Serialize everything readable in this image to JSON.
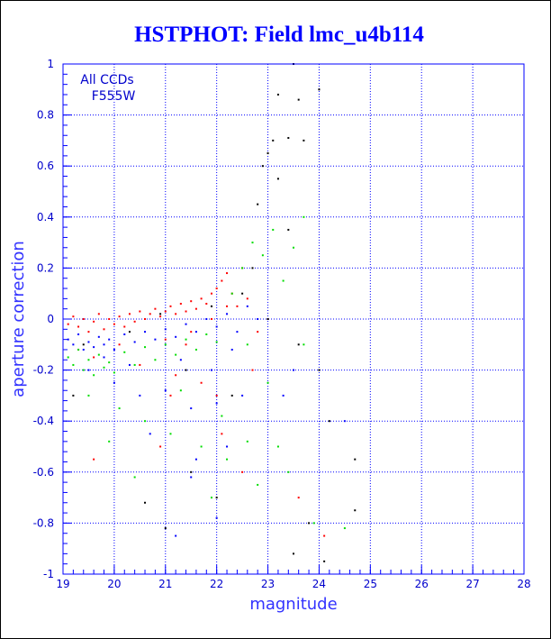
{
  "chart_data": {
    "type": "scatter",
    "title": "HSTPHOT: Field lmc_u4b114",
    "xlabel": "magnitude",
    "ylabel": "aperture correction",
    "xlim": [
      19,
      28
    ],
    "ylim": [
      -1,
      1
    ],
    "xticks": [
      "19",
      "20",
      "21",
      "22",
      "23",
      "24",
      "25",
      "26",
      "27",
      "28"
    ],
    "yticks": [
      "1",
      "0.8",
      "0.6",
      "0.4",
      "0.2",
      "0",
      "-0.2",
      "-0.4",
      "-0.6",
      "-0.8",
      "-1"
    ],
    "grid": true,
    "annotations": [
      "All CCDs",
      "F555W"
    ],
    "colors": {
      "axes": "#0000ff",
      "grid": "#0000ff",
      "title": "#0000ff"
    },
    "series": [
      {
        "color": "#ff0000",
        "points": [
          [
            19.1,
            -0.02
          ],
          [
            19.2,
            0.01
          ],
          [
            19.3,
            -0.03
          ],
          [
            19.4,
            0.0
          ],
          [
            19.5,
            -0.05
          ],
          [
            19.6,
            -0.01
          ],
          [
            19.7,
            0.02
          ],
          [
            19.8,
            -0.04
          ],
          [
            19.9,
            0.0
          ],
          [
            20.0,
            -0.02
          ],
          [
            20.1,
            0.01
          ],
          [
            20.2,
            -0.03
          ],
          [
            20.3,
            0.02
          ],
          [
            20.4,
            -0.01
          ],
          [
            20.5,
            0.03
          ],
          [
            20.6,
            0.0
          ],
          [
            20.7,
            0.02
          ],
          [
            20.8,
            0.04
          ],
          [
            20.9,
            0.01
          ],
          [
            21.0,
            0.03
          ],
          [
            21.1,
            0.05
          ],
          [
            21.2,
            0.02
          ],
          [
            21.3,
            0.06
          ],
          [
            21.4,
            0.03
          ],
          [
            21.5,
            0.07
          ],
          [
            21.6,
            0.04
          ],
          [
            21.7,
            0.08
          ],
          [
            21.8,
            0.06
          ],
          [
            21.9,
            0.1
          ],
          [
            22.0,
            0.12
          ],
          [
            22.1,
            0.15
          ],
          [
            22.2,
            0.18
          ],
          [
            22.3,
            0.1
          ],
          [
            22.4,
            0.05
          ],
          [
            22.5,
            0.2
          ],
          [
            22.6,
            0.08
          ],
          [
            22.2,
            0.05
          ],
          [
            21.9,
            0.0
          ],
          [
            21.5,
            -0.05
          ],
          [
            21.0,
            -0.08
          ],
          [
            19.3,
            -0.12
          ],
          [
            19.6,
            -0.15
          ],
          [
            20.1,
            -0.1
          ],
          [
            20.5,
            -0.18
          ],
          [
            21.2,
            -0.22
          ],
          [
            21.7,
            -0.25
          ],
          [
            22.0,
            -0.3
          ],
          [
            21.4,
            -0.1
          ],
          [
            22.8,
            -0.05
          ],
          [
            23.0,
            0.0
          ],
          [
            19.6,
            -0.55
          ],
          [
            20.9,
            -0.5
          ],
          [
            22.5,
            -0.6
          ],
          [
            23.6,
            -0.7
          ],
          [
            24.1,
            -0.85
          ],
          [
            22.1,
            -0.45
          ],
          [
            21.1,
            -0.3
          ],
          [
            22.7,
            -0.2
          ]
        ]
      },
      {
        "color": "#0000ff",
        "points": [
          [
            19.1,
            -0.08
          ],
          [
            19.2,
            -0.1
          ],
          [
            19.3,
            -0.06
          ],
          [
            19.4,
            -0.12
          ],
          [
            19.5,
            -0.09
          ],
          [
            19.6,
            -0.11
          ],
          [
            19.7,
            -0.07
          ],
          [
            19.8,
            -0.1
          ],
          [
            19.9,
            -0.08
          ],
          [
            20.0,
            -0.12
          ],
          [
            20.2,
            -0.06
          ],
          [
            20.4,
            -0.09
          ],
          [
            20.6,
            -0.05
          ],
          [
            20.8,
            -0.08
          ],
          [
            21.0,
            -0.04
          ],
          [
            21.2,
            -0.07
          ],
          [
            21.4,
            -0.02
          ],
          [
            21.6,
            -0.05
          ],
          [
            21.8,
            0.0
          ],
          [
            22.0,
            -0.03
          ],
          [
            22.2,
            0.02
          ],
          [
            22.4,
            -0.05
          ],
          [
            22.6,
            0.05
          ],
          [
            22.8,
            0.0
          ],
          [
            19.5,
            -0.2
          ],
          [
            20.0,
            -0.25
          ],
          [
            20.5,
            -0.3
          ],
          [
            21.0,
            -0.28
          ],
          [
            21.5,
            -0.35
          ],
          [
            22.0,
            -0.33
          ],
          [
            22.5,
            -0.3
          ],
          [
            19.8,
            -0.15
          ],
          [
            20.3,
            -0.18
          ],
          [
            21.3,
            -0.16
          ],
          [
            21.9,
            -0.2
          ],
          [
            22.3,
            -0.12
          ],
          [
            20.7,
            -0.45
          ],
          [
            21.6,
            -0.55
          ],
          [
            22.2,
            -0.5
          ],
          [
            24.5,
            -0.4
          ],
          [
            23.3,
            -0.3
          ],
          [
            23.5,
            -0.2
          ],
          [
            21.2,
            -0.85
          ],
          [
            22.0,
            -0.78
          ],
          [
            21.5,
            -0.62
          ]
        ]
      },
      {
        "color": "#00dd00",
        "points": [
          [
            19.1,
            -0.15
          ],
          [
            19.2,
            -0.18
          ],
          [
            19.3,
            -0.12
          ],
          [
            19.4,
            -0.2
          ],
          [
            19.5,
            -0.16
          ],
          [
            19.6,
            -0.22
          ],
          [
            19.7,
            -0.14
          ],
          [
            19.8,
            -0.19
          ],
          [
            19.9,
            -0.17
          ],
          [
            20.0,
            -0.21
          ],
          [
            20.2,
            -0.13
          ],
          [
            20.4,
            -0.18
          ],
          [
            20.6,
            -0.11
          ],
          [
            20.8,
            -0.16
          ],
          [
            21.0,
            -0.1
          ],
          [
            21.2,
            -0.14
          ],
          [
            21.4,
            -0.08
          ],
          [
            21.6,
            -0.12
          ],
          [
            21.8,
            -0.06
          ],
          [
            22.0,
            -0.09
          ],
          [
            22.3,
            0.1
          ],
          [
            22.5,
            0.2
          ],
          [
            22.7,
            0.3
          ],
          [
            22.9,
            0.25
          ],
          [
            23.1,
            0.35
          ],
          [
            23.3,
            0.15
          ],
          [
            23.5,
            0.28
          ],
          [
            23.7,
            0.4
          ],
          [
            22.6,
            -0.1
          ],
          [
            23.0,
            -0.25
          ],
          [
            19.5,
            -0.3
          ],
          [
            20.1,
            -0.35
          ],
          [
            20.6,
            -0.4
          ],
          [
            21.1,
            -0.45
          ],
          [
            21.7,
            -0.5
          ],
          [
            22.2,
            -0.55
          ],
          [
            22.6,
            -0.48
          ],
          [
            23.2,
            -0.5
          ],
          [
            20.4,
            -0.62
          ],
          [
            21.9,
            -0.7
          ],
          [
            23.9,
            -0.8
          ],
          [
            22.8,
            -0.65
          ],
          [
            21.3,
            -0.28
          ],
          [
            22.1,
            -0.38
          ],
          [
            23.7,
            -0.1
          ],
          [
            24.5,
            -0.82
          ],
          [
            23.4,
            -0.6
          ],
          [
            19.9,
            -0.48
          ]
        ]
      },
      {
        "color": "#000000",
        "points": [
          [
            23.5,
            1.0
          ],
          [
            23.2,
            0.88
          ],
          [
            23.6,
            0.86
          ],
          [
            24.0,
            0.9
          ],
          [
            23.1,
            0.7
          ],
          [
            23.4,
            0.71
          ],
          [
            23.7,
            0.7
          ],
          [
            23.0,
            0.65
          ],
          [
            22.9,
            0.6
          ],
          [
            23.2,
            0.55
          ],
          [
            22.8,
            0.45
          ],
          [
            23.4,
            0.35
          ],
          [
            22.7,
            0.2
          ],
          [
            23.0,
            0.0
          ],
          [
            23.6,
            -0.1
          ],
          [
            24.0,
            -0.2
          ],
          [
            24.2,
            -0.4
          ],
          [
            24.7,
            -0.55
          ],
          [
            24.7,
            -0.75
          ],
          [
            23.8,
            -0.8
          ],
          [
            23.5,
            -0.92
          ],
          [
            24.1,
            -0.95
          ],
          [
            21.0,
            -0.82
          ],
          [
            22.0,
            -0.7
          ],
          [
            21.5,
            -0.6
          ],
          [
            20.6,
            -0.72
          ],
          [
            22.3,
            -0.3
          ],
          [
            21.4,
            -0.2
          ],
          [
            20.3,
            -0.05
          ],
          [
            19.4,
            -0.1
          ],
          [
            19.2,
            -0.3
          ],
          [
            22.5,
            0.1
          ],
          [
            21.9,
            0.05
          ],
          [
            20.9,
            0.02
          ]
        ]
      }
    ]
  }
}
